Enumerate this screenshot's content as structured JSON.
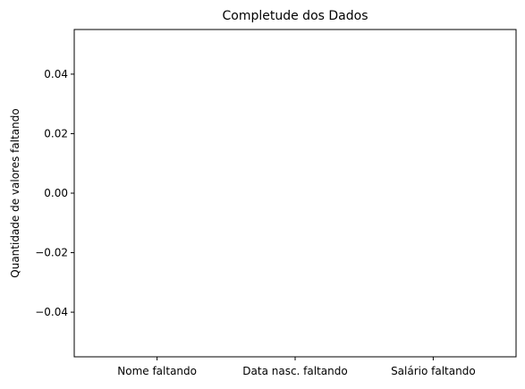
{
  "chart_data": {
    "type": "bar",
    "title": "Completude dos Dados",
    "xlabel": "",
    "ylabel": "Quantidade de valores faltando",
    "categories": [
      "Nome faltando",
      "Data nasc. faltando",
      "Salário faltando"
    ],
    "values": [
      0,
      0,
      0
    ],
    "ylim": [
      -0.055,
      0.055
    ],
    "yticks": [
      0.04,
      0.02,
      0.0,
      -0.02,
      -0.04
    ],
    "ytick_labels": [
      "0.04",
      "0.02",
      "0.00",
      "−0.02",
      "−0.04"
    ],
    "grid": false,
    "bar_color": "#1f77b4"
  }
}
